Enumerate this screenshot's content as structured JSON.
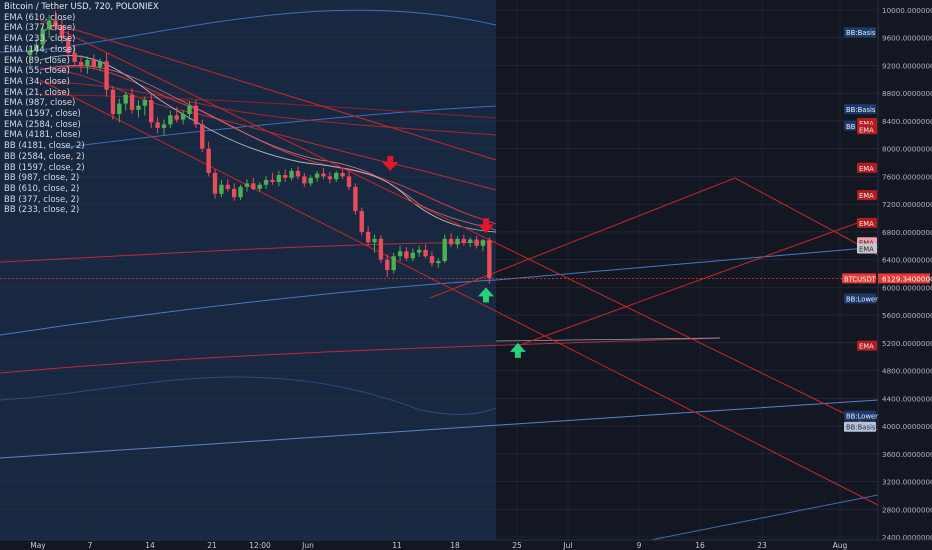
{
  "header": {
    "title": "Bitcoin / Tether USD, 720, POLONIEX"
  },
  "legend": {
    "items": [
      "EMA (610, close)",
      "EMA (377, close)",
      "EMA (233, close)",
      "EMA (144, close)",
      "EMA (89, close)",
      "EMA (55, close)",
      "EMA (34, close)",
      "EMA (21, close)",
      "EMA (987, close)",
      "EMA (1597, close)",
      "EMA (2584, close)",
      "EMA (4181, close)",
      "BB (4181, close, 2)",
      "BB (2584, close, 2)",
      "BB (1597, close, 2)",
      "BB (987, close, 2)",
      "BB (610, close, 2)",
      "BB (377, close, 2)",
      "BB (233, close, 2)"
    ]
  },
  "colors": {
    "background": "#131722",
    "history_shade": "#1a2a45",
    "up_candle": "#4caf50",
    "down_candle": "#e84b5a",
    "channel_red": "#c62828",
    "ema_light": "#d0d0d0",
    "bb_blue": "#3f6fb5",
    "price_tag": "#e53935",
    "arrow_up": "#26d07c",
    "arrow_down": "#e3172b"
  },
  "chart_data": {
    "type": "candlestick",
    "symbol": "BTCUSDT",
    "interval": "720",
    "exchange": "POLONIEX",
    "last_price": "6129.34000000",
    "ylim": [
      2400,
      10000
    ],
    "y_ticks": [
      "10000.00000000",
      "9600.00000000",
      "9200.00000000",
      "8800.00000000",
      "8400.00000000",
      "8000.00000000",
      "7600.00000000",
      "7200.00000000",
      "6800.00000000",
      "6400.00000000",
      "6000.00000000",
      "5600.00000000",
      "5200.00000000",
      "4800.00000000",
      "4400.00000000",
      "4000.00000000",
      "3600.00000000",
      "3200.00000000",
      "2800.00000000",
      "2400.00000000"
    ],
    "x_ticks": [
      "May",
      "7",
      "14",
      "21",
      "12:00",
      "Jun",
      "11",
      "18",
      "25",
      "Jul",
      "9",
      "16",
      "23",
      "Aug"
    ],
    "candles": [
      {
        "o": 9350,
        "h": 9480,
        "l": 9200,
        "c": 9420
      },
      {
        "o": 9420,
        "h": 9580,
        "l": 9350,
        "c": 9500
      },
      {
        "o": 9500,
        "h": 9780,
        "l": 9420,
        "c": 9720
      },
      {
        "o": 9720,
        "h": 9930,
        "l": 9600,
        "c": 9850
      },
      {
        "o": 9850,
        "h": 9990,
        "l": 9700,
        "c": 9760
      },
      {
        "o": 9760,
        "h": 9880,
        "l": 9520,
        "c": 9600
      },
      {
        "o": 9600,
        "h": 9700,
        "l": 9300,
        "c": 9380
      },
      {
        "o": 9380,
        "h": 9500,
        "l": 9200,
        "c": 9250
      },
      {
        "o": 9250,
        "h": 9350,
        "l": 9100,
        "c": 9200
      },
      {
        "o": 9200,
        "h": 9330,
        "l": 9080,
        "c": 9280
      },
      {
        "o": 9280,
        "h": 9360,
        "l": 9150,
        "c": 9180
      },
      {
        "o": 9180,
        "h": 9300,
        "l": 9120,
        "c": 9260
      },
      {
        "o": 9260,
        "h": 9380,
        "l": 8750,
        "c": 8850
      },
      {
        "o": 8850,
        "h": 8900,
        "l": 8420,
        "c": 8500
      },
      {
        "o": 8500,
        "h": 8720,
        "l": 8380,
        "c": 8650
      },
      {
        "o": 8650,
        "h": 8820,
        "l": 8550,
        "c": 8780
      },
      {
        "o": 8780,
        "h": 8870,
        "l": 8500,
        "c": 8560
      },
      {
        "o": 8560,
        "h": 8700,
        "l": 8450,
        "c": 8620
      },
      {
        "o": 8620,
        "h": 8750,
        "l": 8480,
        "c": 8700
      },
      {
        "o": 8700,
        "h": 8800,
        "l": 8300,
        "c": 8380
      },
      {
        "o": 8380,
        "h": 8460,
        "l": 8220,
        "c": 8300
      },
      {
        "o": 8300,
        "h": 8420,
        "l": 8200,
        "c": 8350
      },
      {
        "o": 8350,
        "h": 8550,
        "l": 8300,
        "c": 8480
      },
      {
        "o": 8480,
        "h": 8600,
        "l": 8380,
        "c": 8420
      },
      {
        "o": 8420,
        "h": 8550,
        "l": 8350,
        "c": 8500
      },
      {
        "o": 8500,
        "h": 8680,
        "l": 8420,
        "c": 8620
      },
      {
        "o": 8620,
        "h": 8700,
        "l": 8300,
        "c": 8350
      },
      {
        "o": 8350,
        "h": 8420,
        "l": 7950,
        "c": 8000
      },
      {
        "o": 8000,
        "h": 8100,
        "l": 7600,
        "c": 7650
      },
      {
        "o": 7650,
        "h": 7700,
        "l": 7280,
        "c": 7350
      },
      {
        "o": 7350,
        "h": 7550,
        "l": 7300,
        "c": 7480
      },
      {
        "o": 7480,
        "h": 7560,
        "l": 7380,
        "c": 7420
      },
      {
        "o": 7420,
        "h": 7500,
        "l": 7250,
        "c": 7300
      },
      {
        "o": 7300,
        "h": 7480,
        "l": 7260,
        "c": 7450
      },
      {
        "o": 7450,
        "h": 7560,
        "l": 7380,
        "c": 7500
      },
      {
        "o": 7500,
        "h": 7580,
        "l": 7400,
        "c": 7420
      },
      {
        "o": 7420,
        "h": 7520,
        "l": 7380,
        "c": 7480
      },
      {
        "o": 7480,
        "h": 7600,
        "l": 7420,
        "c": 7550
      },
      {
        "o": 7550,
        "h": 7650,
        "l": 7480,
        "c": 7520
      },
      {
        "o": 7520,
        "h": 7680,
        "l": 7460,
        "c": 7620
      },
      {
        "o": 7620,
        "h": 7700,
        "l": 7520,
        "c": 7580
      },
      {
        "o": 7580,
        "h": 7720,
        "l": 7540,
        "c": 7680
      },
      {
        "o": 7680,
        "h": 7740,
        "l": 7560,
        "c": 7600
      },
      {
        "o": 7600,
        "h": 7650,
        "l": 7450,
        "c": 7500
      },
      {
        "o": 7500,
        "h": 7620,
        "l": 7460,
        "c": 7580
      },
      {
        "o": 7580,
        "h": 7680,
        "l": 7520,
        "c": 7640
      },
      {
        "o": 7640,
        "h": 7720,
        "l": 7560,
        "c": 7600
      },
      {
        "o": 7600,
        "h": 7660,
        "l": 7500,
        "c": 7560
      },
      {
        "o": 7560,
        "h": 7680,
        "l": 7520,
        "c": 7650
      },
      {
        "o": 7650,
        "h": 7720,
        "l": 7560,
        "c": 7600
      },
      {
        "o": 7600,
        "h": 7680,
        "l": 7400,
        "c": 7450
      },
      {
        "o": 7450,
        "h": 7500,
        "l": 7050,
        "c": 7100
      },
      {
        "o": 7100,
        "h": 7150,
        "l": 6750,
        "c": 6800
      },
      {
        "o": 6800,
        "h": 6880,
        "l": 6600,
        "c": 6650
      },
      {
        "o": 6650,
        "h": 6760,
        "l": 6500,
        "c": 6700
      },
      {
        "o": 6700,
        "h": 6750,
        "l": 6350,
        "c": 6400
      },
      {
        "o": 6400,
        "h": 6480,
        "l": 6150,
        "c": 6250
      },
      {
        "o": 6250,
        "h": 6500,
        "l": 6200,
        "c": 6450
      },
      {
        "o": 6450,
        "h": 6600,
        "l": 6380,
        "c": 6520
      },
      {
        "o": 6520,
        "h": 6580,
        "l": 6380,
        "c": 6420
      },
      {
        "o": 6420,
        "h": 6560,
        "l": 6380,
        "c": 6500
      },
      {
        "o": 6500,
        "h": 6600,
        "l": 6440,
        "c": 6540
      },
      {
        "o": 6540,
        "h": 6620,
        "l": 6420,
        "c": 6450
      },
      {
        "o": 6450,
        "h": 6520,
        "l": 6300,
        "c": 6350
      },
      {
        "o": 6350,
        "h": 6420,
        "l": 6280,
        "c": 6380
      },
      {
        "o": 6380,
        "h": 6760,
        "l": 6350,
        "c": 6700
      },
      {
        "o": 6700,
        "h": 6780,
        "l": 6580,
        "c": 6620
      },
      {
        "o": 6620,
        "h": 6740,
        "l": 6560,
        "c": 6700
      },
      {
        "o": 6700,
        "h": 6760,
        "l": 6600,
        "c": 6640
      },
      {
        "o": 6640,
        "h": 6720,
        "l": 6580,
        "c": 6690
      },
      {
        "o": 6690,
        "h": 6740,
        "l": 6560,
        "c": 6600
      },
      {
        "o": 6600,
        "h": 6700,
        "l": 6520,
        "c": 6680
      },
      {
        "o": 6680,
        "h": 6720,
        "l": 6050,
        "c": 6129
      }
    ],
    "markers": [
      {
        "type": "arrow_down",
        "date_index": 56,
        "price": 7750
      },
      {
        "type": "arrow_down",
        "date_index": 71,
        "price": 6850
      },
      {
        "type": "arrow_up",
        "date_index": 71,
        "price": 6000
      },
      {
        "type": "arrow_up",
        "date_index": 76,
        "price": 5200
      }
    ],
    "right_labels": [
      {
        "text": "BB:Basis",
        "price": 9680,
        "kind": "bb"
      },
      {
        "text": "BB:Basis",
        "price": 8570,
        "kind": "bb"
      },
      {
        "text": "BB",
        "price": 8330,
        "kind": "bb"
      },
      {
        "text": "EMA",
        "price": 8370,
        "kind": "ema"
      },
      {
        "text": "EMA",
        "price": 8280,
        "kind": "ema"
      },
      {
        "text": "EMA",
        "price": 7725,
        "kind": "ema"
      },
      {
        "text": "EMA",
        "price": 7330,
        "kind": "ema"
      },
      {
        "text": "EMA",
        "price": 6930,
        "kind": "ema"
      },
      {
        "text": "EMA",
        "price": 6650,
        "kind": "ema_light"
      },
      {
        "text": "EMA",
        "price": 6560,
        "kind": "ema_dim"
      },
      {
        "text": "BTCUSDT",
        "price": 6129,
        "kind": "price"
      },
      {
        "text": "BB:Lower",
        "price": 5840,
        "kind": "bb"
      },
      {
        "text": "EMA",
        "price": 5160,
        "kind": "ema"
      },
      {
        "text": "BB:Lower",
        "price": 4150,
        "kind": "bb"
      },
      {
        "text": "BB:Basis",
        "price": 3990,
        "kind": "bb_light"
      }
    ]
  }
}
